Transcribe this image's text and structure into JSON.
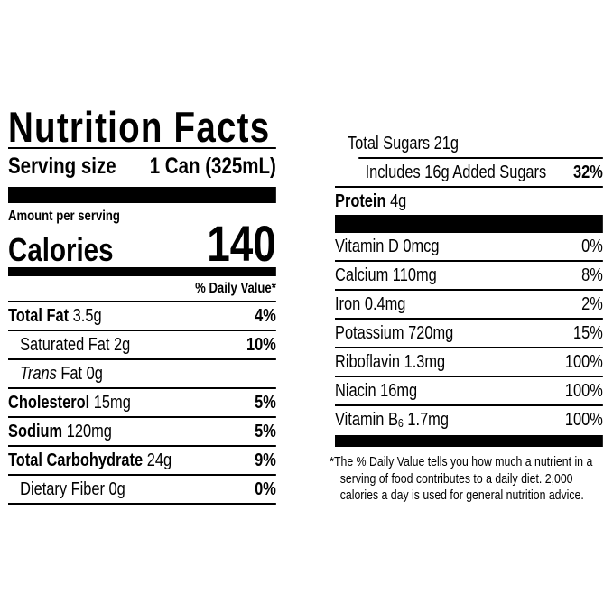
{
  "colors": {
    "ink": "#000000",
    "background": "#ffffff"
  },
  "label": {
    "title": "Nutrition Facts",
    "serving": {
      "label": "Serving size",
      "value": "1 Can (325mL)"
    },
    "amount_per_serving": "Amount per serving",
    "calories": {
      "label": "Calories",
      "value": "140"
    },
    "daily_value_header": "% Daily Value*",
    "left_rows": [
      {
        "name": "Total Fat",
        "amount": "3.5g",
        "dv": "4%"
      },
      {
        "name": "Saturated Fat",
        "amount": "2g",
        "dv": "10%"
      },
      {
        "name_italic": "Trans",
        "name": "Fat",
        "amount": "0g"
      },
      {
        "name": "Cholesterol",
        "amount": "15mg",
        "dv": "5%"
      },
      {
        "name": "Sodium",
        "amount": "120mg",
        "dv": "5%"
      },
      {
        "name": "Total Carbohydrate",
        "amount": "24g",
        "dv": "9%"
      },
      {
        "name": "Dietary Fiber",
        "amount": "0g",
        "dv": "0%"
      }
    ],
    "right_rows": {
      "total_sugars": {
        "name": "Total Sugars",
        "amount": "21g"
      },
      "added_sugars": {
        "name": "Includes 16g Added Sugars",
        "dv": "32%"
      },
      "protein": {
        "name": "Protein",
        "amount": "4g"
      }
    },
    "vitamins": [
      {
        "name": "Vitamin D",
        "amount": "0mcg",
        "dv": "0%"
      },
      {
        "name": "Calcium",
        "amount": "110mg",
        "dv": "8%"
      },
      {
        "name": "Iron",
        "amount": "0.4mg",
        "dv": "2%"
      },
      {
        "name": "Potassium",
        "amount": "720mg",
        "dv": "15%"
      },
      {
        "name": "Riboflavin",
        "amount": "1.3mg",
        "dv": "100%"
      },
      {
        "name": "Niacin",
        "amount": "16mg",
        "dv": "100%"
      },
      {
        "name_prefix": "Vitamin B",
        "name_sub": "6",
        "amount": "1.7mg",
        "dv": "100%"
      }
    ],
    "footnote": "*The % Daily Value tells you how much a nutrient in a serving of food contributes to a daily diet. 2,000 calories a day is used for general nutrition advice."
  }
}
